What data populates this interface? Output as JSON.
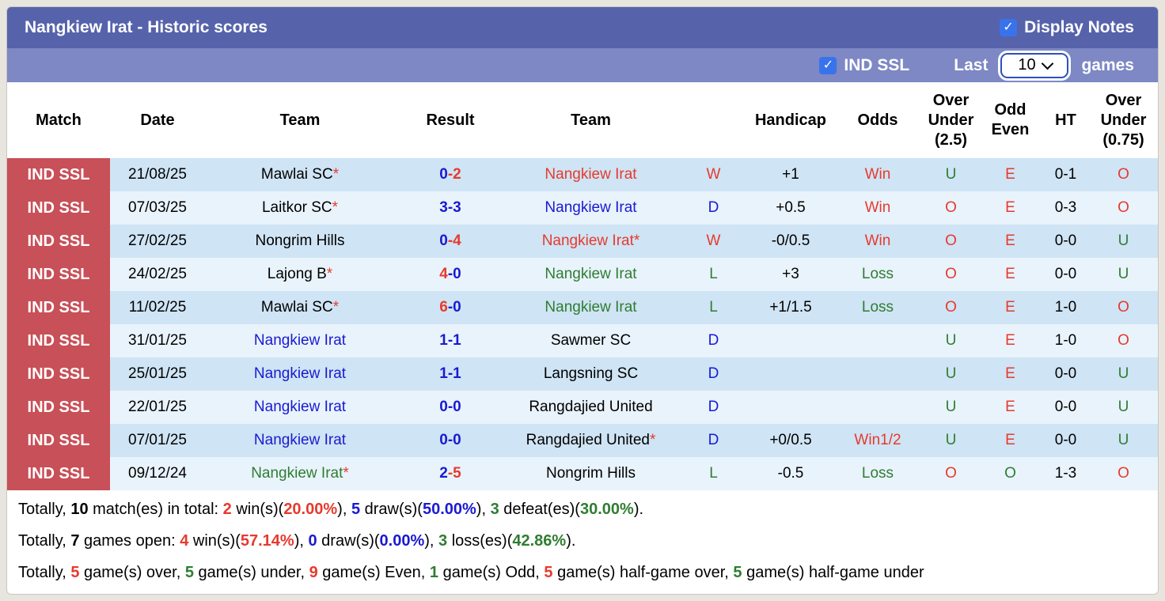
{
  "colors": {
    "header_bar": "#5663ab",
    "filter_bar": "#7d88c4",
    "badge": "#c85058",
    "row_odd": "#cfe4f4",
    "row_even": "#e9f3fc",
    "checkbox": "#3873ec",
    "red": "#e63a2e",
    "blue": "#1a1ad1",
    "green": "#2f7d32"
  },
  "title_bar": {
    "title": "Nangkiew Irat - Historic scores",
    "display_notes_label": "Display Notes",
    "display_notes_checked": true,
    "checkmark_glyph": "✓"
  },
  "filter_bar": {
    "league_label": "IND SSL",
    "league_checked": true,
    "last_label": "Last",
    "games_count": "10",
    "games_label": "games"
  },
  "table": {
    "columns": [
      "Match",
      "Date",
      "Team",
      "Result",
      "Team",
      "",
      "Handicap",
      "Odds",
      "Over Under (2.5)",
      "Odd Even",
      "HT",
      "Over Under (0.75)"
    ],
    "rows": [
      {
        "league": "IND SSL",
        "date": "21/08/25",
        "team1": {
          "t": "Mawlai SC",
          "c": "black",
          "star": true
        },
        "result": [
          {
            "t": "0",
            "c": "blue"
          },
          {
            "t": "-2",
            "c": "red"
          }
        ],
        "team2": {
          "t": "Nangkiew Irat",
          "c": "red",
          "star": false
        },
        "letter": {
          "t": "W",
          "c": "red"
        },
        "handicap": "+1",
        "odds": {
          "t": "Win",
          "c": "red"
        },
        "ou25": {
          "t": "U",
          "c": "green"
        },
        "oddeven": {
          "t": "E",
          "c": "red"
        },
        "ht": "0-1",
        "ou075": {
          "t": "O",
          "c": "red"
        }
      },
      {
        "league": "IND SSL",
        "date": "07/03/25",
        "team1": {
          "t": "Laitkor SC",
          "c": "black",
          "star": true
        },
        "result": [
          {
            "t": "3-3",
            "c": "blue"
          }
        ],
        "team2": {
          "t": "Nangkiew Irat",
          "c": "blue",
          "star": false
        },
        "letter": {
          "t": "D",
          "c": "blue"
        },
        "handicap": "+0.5",
        "odds": {
          "t": "Win",
          "c": "red"
        },
        "ou25": {
          "t": "O",
          "c": "red"
        },
        "oddeven": {
          "t": "E",
          "c": "red"
        },
        "ht": "0-3",
        "ou075": {
          "t": "O",
          "c": "red"
        }
      },
      {
        "league": "IND SSL",
        "date": "27/02/25",
        "team1": {
          "t": "Nongrim Hills",
          "c": "black",
          "star": false
        },
        "result": [
          {
            "t": "0",
            "c": "blue"
          },
          {
            "t": "-4",
            "c": "red"
          }
        ],
        "team2": {
          "t": "Nangkiew Irat",
          "c": "red",
          "star": true
        },
        "letter": {
          "t": "W",
          "c": "red"
        },
        "handicap": "-0/0.5",
        "odds": {
          "t": "Win",
          "c": "red"
        },
        "ou25": {
          "t": "O",
          "c": "red"
        },
        "oddeven": {
          "t": "E",
          "c": "red"
        },
        "ht": "0-0",
        "ou075": {
          "t": "U",
          "c": "green"
        }
      },
      {
        "league": "IND SSL",
        "date": "24/02/25",
        "team1": {
          "t": "Lajong B",
          "c": "black",
          "star": true
        },
        "result": [
          {
            "t": "4",
            "c": "red"
          },
          {
            "t": "-0",
            "c": "blue"
          }
        ],
        "team2": {
          "t": "Nangkiew Irat",
          "c": "green",
          "star": false
        },
        "letter": {
          "t": "L",
          "c": "green"
        },
        "handicap": "+3",
        "odds": {
          "t": "Loss",
          "c": "green"
        },
        "ou25": {
          "t": "O",
          "c": "red"
        },
        "oddeven": {
          "t": "E",
          "c": "red"
        },
        "ht": "0-0",
        "ou075": {
          "t": "U",
          "c": "green"
        }
      },
      {
        "league": "IND SSL",
        "date": "11/02/25",
        "team1": {
          "t": "Mawlai SC",
          "c": "black",
          "star": true
        },
        "result": [
          {
            "t": "6",
            "c": "red"
          },
          {
            "t": "-0",
            "c": "blue"
          }
        ],
        "team2": {
          "t": "Nangkiew Irat",
          "c": "green",
          "star": false
        },
        "letter": {
          "t": "L",
          "c": "green"
        },
        "handicap": "+1/1.5",
        "odds": {
          "t": "Loss",
          "c": "green"
        },
        "ou25": {
          "t": "O",
          "c": "red"
        },
        "oddeven": {
          "t": "E",
          "c": "red"
        },
        "ht": "1-0",
        "ou075": {
          "t": "O",
          "c": "red"
        }
      },
      {
        "league": "IND SSL",
        "date": "31/01/25",
        "team1": {
          "t": "Nangkiew Irat",
          "c": "blue",
          "star": false
        },
        "result": [
          {
            "t": "1-1",
            "c": "blue"
          }
        ],
        "team2": {
          "t": "Sawmer SC",
          "c": "black",
          "star": false
        },
        "letter": {
          "t": "D",
          "c": "blue"
        },
        "handicap": "",
        "odds": {
          "t": "",
          "c": "black"
        },
        "ou25": {
          "t": "U",
          "c": "green"
        },
        "oddeven": {
          "t": "E",
          "c": "red"
        },
        "ht": "1-0",
        "ou075": {
          "t": "O",
          "c": "red"
        }
      },
      {
        "league": "IND SSL",
        "date": "25/01/25",
        "team1": {
          "t": "Nangkiew Irat",
          "c": "blue",
          "star": false
        },
        "result": [
          {
            "t": "1-1",
            "c": "blue"
          }
        ],
        "team2": {
          "t": "Langsning SC",
          "c": "black",
          "star": false
        },
        "letter": {
          "t": "D",
          "c": "blue"
        },
        "handicap": "",
        "odds": {
          "t": "",
          "c": "black"
        },
        "ou25": {
          "t": "U",
          "c": "green"
        },
        "oddeven": {
          "t": "E",
          "c": "red"
        },
        "ht": "0-0",
        "ou075": {
          "t": "U",
          "c": "green"
        }
      },
      {
        "league": "IND SSL",
        "date": "22/01/25",
        "team1": {
          "t": "Nangkiew Irat",
          "c": "blue",
          "star": false
        },
        "result": [
          {
            "t": "0-0",
            "c": "blue"
          }
        ],
        "team2": {
          "t": "Rangdajied United",
          "c": "black",
          "star": false
        },
        "letter": {
          "t": "D",
          "c": "blue"
        },
        "handicap": "",
        "odds": {
          "t": "",
          "c": "black"
        },
        "ou25": {
          "t": "U",
          "c": "green"
        },
        "oddeven": {
          "t": "E",
          "c": "red"
        },
        "ht": "0-0",
        "ou075": {
          "t": "U",
          "c": "green"
        }
      },
      {
        "league": "IND SSL",
        "date": "07/01/25",
        "team1": {
          "t": "Nangkiew Irat",
          "c": "blue",
          "star": false
        },
        "result": [
          {
            "t": "0-0",
            "c": "blue"
          }
        ],
        "team2": {
          "t": "Rangdajied United",
          "c": "black",
          "star": true
        },
        "letter": {
          "t": "D",
          "c": "blue"
        },
        "handicap": "+0/0.5",
        "odds": {
          "t": "Win1/2",
          "c": "red"
        },
        "ou25": {
          "t": "U",
          "c": "green"
        },
        "oddeven": {
          "t": "E",
          "c": "red"
        },
        "ht": "0-0",
        "ou075": {
          "t": "U",
          "c": "green"
        }
      },
      {
        "league": "IND SSL",
        "date": "09/12/24",
        "team1": {
          "t": "Nangkiew Irat",
          "c": "green",
          "star": true
        },
        "result": [
          {
            "t": "2",
            "c": "blue"
          },
          {
            "t": "-5",
            "c": "red"
          }
        ],
        "team2": {
          "t": "Nongrim Hills",
          "c": "black",
          "star": false
        },
        "letter": {
          "t": "L",
          "c": "green"
        },
        "handicap": "-0.5",
        "odds": {
          "t": "Loss",
          "c": "green"
        },
        "ou25": {
          "t": "O",
          "c": "red"
        },
        "oddeven": {
          "t": "O",
          "c": "green"
        },
        "ht": "1-3",
        "ou075": {
          "t": "O",
          "c": "red"
        }
      }
    ]
  },
  "summary": [
    [
      {
        "t": "Totally, ",
        "c": "black"
      },
      {
        "t": "10",
        "c": "black",
        "b": 1
      },
      {
        "t": " match(es) in total: ",
        "c": "black"
      },
      {
        "t": "2",
        "c": "red",
        "b": 1
      },
      {
        "t": " win(s)(",
        "c": "black"
      },
      {
        "t": "20.00%",
        "c": "red",
        "b": 1
      },
      {
        "t": "), ",
        "c": "black"
      },
      {
        "t": "5",
        "c": "blue",
        "b": 1
      },
      {
        "t": " draw(s)(",
        "c": "black"
      },
      {
        "t": "50.00%",
        "c": "blue",
        "b": 1
      },
      {
        "t": "), ",
        "c": "black"
      },
      {
        "t": "3",
        "c": "green",
        "b": 1
      },
      {
        "t": " defeat(es)(",
        "c": "black"
      },
      {
        "t": "30.00%",
        "c": "green",
        "b": 1
      },
      {
        "t": ").",
        "c": "black"
      }
    ],
    [
      {
        "t": "Totally, ",
        "c": "black"
      },
      {
        "t": "7",
        "c": "black",
        "b": 1
      },
      {
        "t": " games open: ",
        "c": "black"
      },
      {
        "t": "4",
        "c": "red",
        "b": 1
      },
      {
        "t": " win(s)(",
        "c": "black"
      },
      {
        "t": "57.14%",
        "c": "red",
        "b": 1
      },
      {
        "t": "), ",
        "c": "black"
      },
      {
        "t": "0",
        "c": "blue",
        "b": 1
      },
      {
        "t": " draw(s)(",
        "c": "black"
      },
      {
        "t": "0.00%",
        "c": "blue",
        "b": 1
      },
      {
        "t": "), ",
        "c": "black"
      },
      {
        "t": "3",
        "c": "green",
        "b": 1
      },
      {
        "t": " loss(es)(",
        "c": "black"
      },
      {
        "t": "42.86%",
        "c": "green",
        "b": 1
      },
      {
        "t": ").",
        "c": "black"
      }
    ],
    [
      {
        "t": "Totally, ",
        "c": "black"
      },
      {
        "t": "5",
        "c": "red",
        "b": 1
      },
      {
        "t": " game(s) over, ",
        "c": "black"
      },
      {
        "t": "5",
        "c": "green",
        "b": 1
      },
      {
        "t": " game(s) under, ",
        "c": "black"
      },
      {
        "t": "9",
        "c": "red",
        "b": 1
      },
      {
        "t": " game(s) Even, ",
        "c": "black"
      },
      {
        "t": "1",
        "c": "green",
        "b": 1
      },
      {
        "t": " game(s) Odd, ",
        "c": "black"
      },
      {
        "t": "5",
        "c": "red",
        "b": 1
      },
      {
        "t": " game(s) half-game over, ",
        "c": "black"
      },
      {
        "t": "5",
        "c": "green",
        "b": 1
      },
      {
        "t": " game(s) half-game under",
        "c": "black"
      }
    ]
  ]
}
